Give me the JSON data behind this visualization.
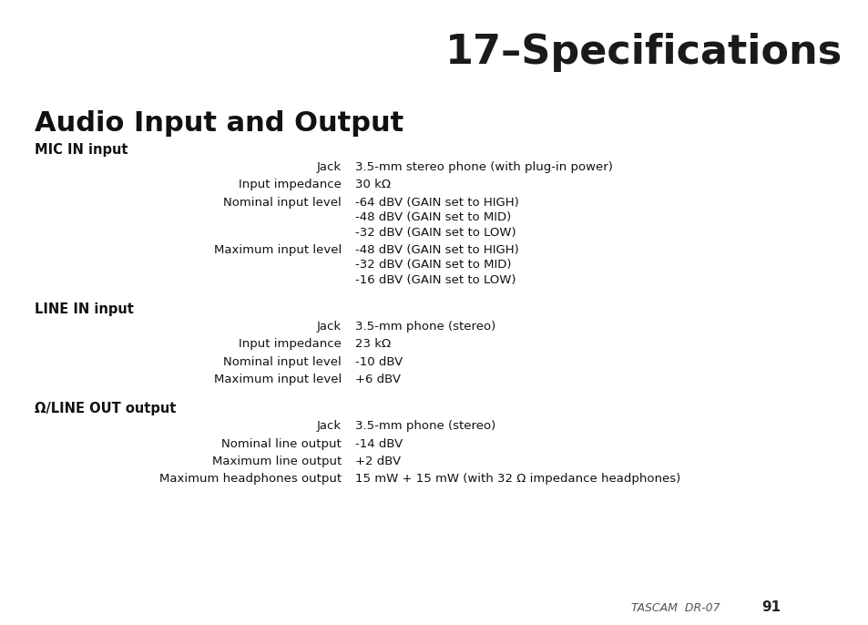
{
  "header_text": "17–Specifications",
  "header_bg": "#a0a0a0",
  "header_text_color": "#1a1a1a",
  "page_bg": "#ffffff",
  "title": "Audio Input and Output",
  "footer_italic": "TASCAM  DR-07 ",
  "footer_bold": "91",
  "sections": [
    {
      "heading": "MIC IN input",
      "rows": [
        {
          "label": "Jack",
          "value": "3.5-mm stereo phone (with plug-in power)"
        },
        {
          "label": "Input impedance",
          "value": "30 kΩ"
        },
        {
          "label": "Nominal input level",
          "value": "-64 dBV (GAIN set to HIGH)\n-48 dBV (GAIN set to MID)\n-32 dBV (GAIN set to LOW)"
        },
        {
          "label": "Maximum input level",
          "value": "-48 dBV (GAIN set to HIGH)\n-32 dBV (GAIN set to MID)\n-16 dBV (GAIN set to LOW)"
        }
      ]
    },
    {
      "heading": "LINE IN input",
      "rows": [
        {
          "label": "Jack",
          "value": "3.5-mm phone (stereo)"
        },
        {
          "label": "Input impedance",
          "value": "23 kΩ"
        },
        {
          "label": "Nominal input level",
          "value": "-10 dBV"
        },
        {
          "label": "Maximum input level",
          "value": "+6 dBV"
        }
      ]
    },
    {
      "heading": "Ω/LINE OUT output",
      "rows": [
        {
          "label": "Jack",
          "value": "3.5-mm phone (stereo)"
        },
        {
          "label": "Nominal line output",
          "value": "-14 dBV"
        },
        {
          "label": "Maximum line output",
          "value": "+2 dBV"
        },
        {
          "label": "Maximum headphones output",
          "value": "15 mW + 15 mW (with 32 Ω impedance headphones)"
        }
      ]
    }
  ]
}
